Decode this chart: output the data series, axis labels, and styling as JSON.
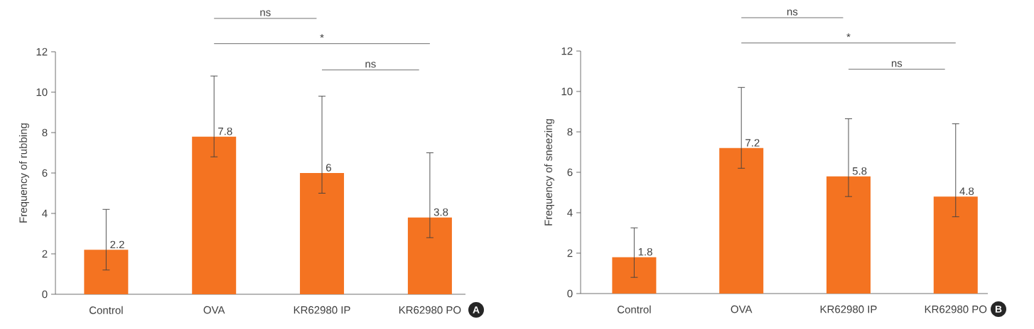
{
  "chart_data": [
    {
      "type": "bar",
      "ylabel": "Frequency of rubbing",
      "categories": [
        "Control",
        "OVA",
        "KR62980 IP",
        "KR62980 PO"
      ],
      "values": [
        2.2,
        7.8,
        6,
        3.8
      ],
      "color": "#f47321",
      "errors": [
        [
          1.2,
          4.2
        ],
        [
          6.8,
          10.8
        ],
        [
          5,
          9.8
        ],
        [
          2.8,
          7
        ]
      ],
      "ylim": [
        0,
        12
      ],
      "yticks": [
        0,
        2,
        4,
        6,
        8,
        10,
        12
      ],
      "data_labels": true,
      "annotations": [
        "ns",
        "*",
        "ns",
        "A"
      ]
    },
    {
      "type": "bar",
      "ylabel": "Frequency of sneezing",
      "categories": [
        "Control",
        "OVA",
        "KR62980 IP",
        "KR62980 PO"
      ],
      "values": [
        1.8,
        7.2,
        5.8,
        4.8
      ],
      "color": "#f47321",
      "errors": [
        [
          0.8,
          3.25
        ],
        [
          6.2,
          10.2
        ],
        [
          4.8,
          8.65
        ],
        [
          3.8,
          8.4
        ]
      ],
      "ylim": [
        0,
        12
      ],
      "yticks": [
        0,
        2,
        4,
        6,
        8,
        10,
        12
      ],
      "data_labels": true,
      "annotations": [
        "ns",
        "*",
        "ns",
        "B"
      ]
    }
  ]
}
